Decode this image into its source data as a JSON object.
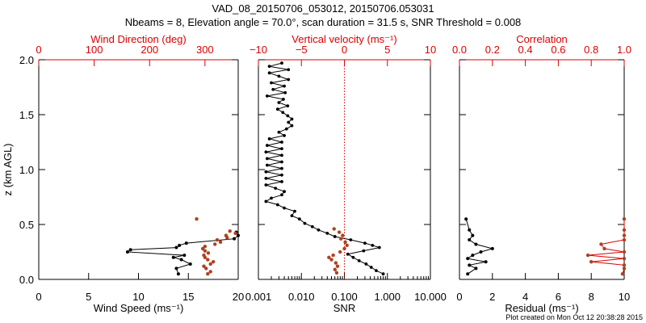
{
  "colors": {
    "axis": "#000000",
    "accent": "#dd0000",
    "marker_red": "#b04020",
    "data": "#000000"
  },
  "header": {
    "title": "VAD_08_20150706_053012, 20150706.053031",
    "subtitle": "Nbeams = 8, Elevation angle = 70.0°, scan duration = 31.5 s, SNR Threshold = 0.008"
  },
  "footer": {
    "note": "Plot created on Mon Oct 12 20:38:28 2015"
  },
  "chart_data": [
    {
      "type": "scatter",
      "panel": "wind",
      "ylabel": "z (km AGL)",
      "ylim": [
        0,
        2
      ],
      "yticks": [
        "0.0",
        "0.5",
        "1.0",
        "1.5",
        "2.0"
      ],
      "ytick_values": [
        0,
        0.5,
        1.0,
        1.5,
        2.0
      ],
      "xlabel": "Wind Speed (ms⁻¹)",
      "xlim": [
        0,
        20
      ],
      "xticks": [
        "0",
        "5",
        "10",
        "15",
        "20"
      ],
      "xtick_values": [
        0,
        5,
        10,
        15,
        20
      ],
      "top_xlabel": "Wind Direction (deg)",
      "top_xlim": [
        0,
        360
      ],
      "top_xticks": [
        "0",
        "100",
        "200",
        "300"
      ],
      "top_xtick_values": [
        0,
        100,
        200,
        300
      ],
      "series": [
        {
          "values_x": [
            14.0,
            13.8,
            15.2,
            14.3,
            13.5,
            14.6,
            8.9,
            9.2,
            13.8,
            14.1,
            14.8,
            19.6,
            20.0,
            19.8
          ],
          "values_y": [
            0.05,
            0.1,
            0.14,
            0.18,
            0.2,
            0.22,
            0.25,
            0.27,
            0.29,
            0.31,
            0.33,
            0.37,
            0.4,
            0.43
          ]
        },
        {
          "values_x": [
            305,
            310,
            302,
            298,
            310,
            315,
            305,
            300,
            298,
            306,
            300,
            296,
            300,
            318,
            328,
            322,
            340,
            338,
            355,
            345,
            285
          ],
          "values_y": [
            0.05,
            0.07,
            0.1,
            0.12,
            0.14,
            0.16,
            0.18,
            0.2,
            0.22,
            0.24,
            0.26,
            0.28,
            0.3,
            0.32,
            0.34,
            0.36,
            0.38,
            0.4,
            0.42,
            0.44,
            0.55
          ]
        }
      ]
    },
    {
      "type": "line",
      "panel": "vertical",
      "top_xlabel": "Vertical velocity (ms⁻¹)",
      "top_xlim": [
        -10,
        10
      ],
      "top_xticks": [
        "−10",
        "−5",
        "0",
        "5",
        "10"
      ],
      "top_xtick_values": [
        -10,
        -5,
        0,
        5,
        10
      ],
      "xlabel": "SNR",
      "xscale": "log",
      "xlim": [
        0.001,
        10
      ],
      "xticks": [
        "0.001",
        "0.010",
        "0.100",
        "1.000",
        "10.000"
      ],
      "xtick_values": [
        0.001,
        0.01,
        0.1,
        1,
        10
      ],
      "ylim": [
        0,
        2
      ],
      "series": [
        {
          "values_x": [
            0.8,
            0.55,
            0.42,
            0.32,
            0.22,
            0.16,
            0.12,
            0.28,
            0.65,
            0.45,
            0.3,
            0.14,
            0.06,
            0.04,
            0.025,
            0.018,
            0.012,
            0.009,
            0.006,
            0.007,
            0.004,
            0.0028,
            0.0015,
            0.002,
            0.0035,
            0.004,
            0.0025,
            0.0015,
            0.0035,
            0.0015,
            0.0035,
            0.0015,
            0.0035,
            0.0016,
            0.0035,
            0.0016,
            0.0035,
            0.0015,
            0.0035,
            0.0016,
            0.0035,
            0.0018,
            0.004,
            0.003,
            0.0045,
            0.006,
            0.005,
            0.006,
            0.0048,
            0.0037,
            0.0028,
            0.0048,
            0.003,
            0.0038,
            0.0016,
            0.0042,
            0.0022,
            0.004,
            0.002,
            0.005,
            0.003,
            0.0018,
            0.005,
            0.0018,
            0.0035
          ],
          "values_y": [
            0.05,
            0.08,
            0.11,
            0.14,
            0.17,
            0.2,
            0.23,
            0.26,
            0.29,
            0.31,
            0.33,
            0.36,
            0.39,
            0.42,
            0.45,
            0.48,
            0.51,
            0.55,
            0.58,
            0.62,
            0.65,
            0.68,
            0.71,
            0.74,
            0.77,
            0.8,
            0.83,
            0.86,
            0.89,
            0.92,
            0.95,
            0.98,
            1.01,
            1.04,
            1.07,
            1.1,
            1.13,
            1.16,
            1.19,
            1.22,
            1.25,
            1.28,
            1.31,
            1.34,
            1.37,
            1.4,
            1.43,
            1.46,
            1.49,
            1.52,
            1.55,
            1.58,
            1.61,
            1.64,
            1.67,
            1.7,
            1.73,
            1.76,
            1.79,
            1.82,
            1.85,
            1.88,
            1.91,
            1.94,
            1.97
          ]
        },
        {
          "values_x": [
            -0.9,
            -1.1,
            -0.8,
            -1.0,
            -1.5,
            -1.8,
            -1.3,
            -0.5,
            0.0,
            0.3,
            0.1,
            -0.4,
            -0.2,
            -0.6,
            -1.2
          ],
          "values_y": [
            0.06,
            0.09,
            0.12,
            0.15,
            0.18,
            0.2,
            0.22,
            0.25,
            0.28,
            0.31,
            0.34,
            0.37,
            0.4,
            0.43,
            0.46
          ]
        }
      ]
    },
    {
      "type": "line",
      "panel": "residual",
      "top_xlabel": "Correlation",
      "top_xlim": [
        0,
        1
      ],
      "top_xticks": [
        "0.0",
        "0.2",
        "0.4",
        "0.6",
        "0.8",
        "1.0"
      ],
      "top_xtick_values": [
        0,
        0.2,
        0.4,
        0.6,
        0.8,
        1.0
      ],
      "xlabel": "Residual (ms⁻¹)",
      "xlim": [
        0,
        10
      ],
      "xticks": [
        "0",
        "2",
        "4",
        "6",
        "8",
        "10"
      ],
      "xtick_values": [
        0,
        2,
        4,
        6,
        8,
        10
      ],
      "ylim": [
        0,
        2
      ],
      "series": [
        {
          "values_x": [
            0.5,
            1.0,
            0.6,
            1.6,
            0.5,
            0.8,
            1.3,
            2.0,
            1.0,
            0.6,
            0.8,
            0.6,
            0.4
          ],
          "values_y": [
            0.05,
            0.1,
            0.13,
            0.16,
            0.19,
            0.22,
            0.25,
            0.28,
            0.32,
            0.36,
            0.4,
            0.45,
            0.55
          ]
        },
        {
          "values_x": [
            0.99,
            1.0,
            1.0,
            0.8,
            1.0,
            0.78,
            1.0,
            0.88,
            0.86,
            1.0,
            1.0,
            1.0,
            1.0
          ],
          "values_y": [
            0.05,
            0.1,
            0.13,
            0.16,
            0.19,
            0.22,
            0.25,
            0.28,
            0.32,
            0.36,
            0.4,
            0.45,
            0.55
          ]
        }
      ]
    }
  ]
}
